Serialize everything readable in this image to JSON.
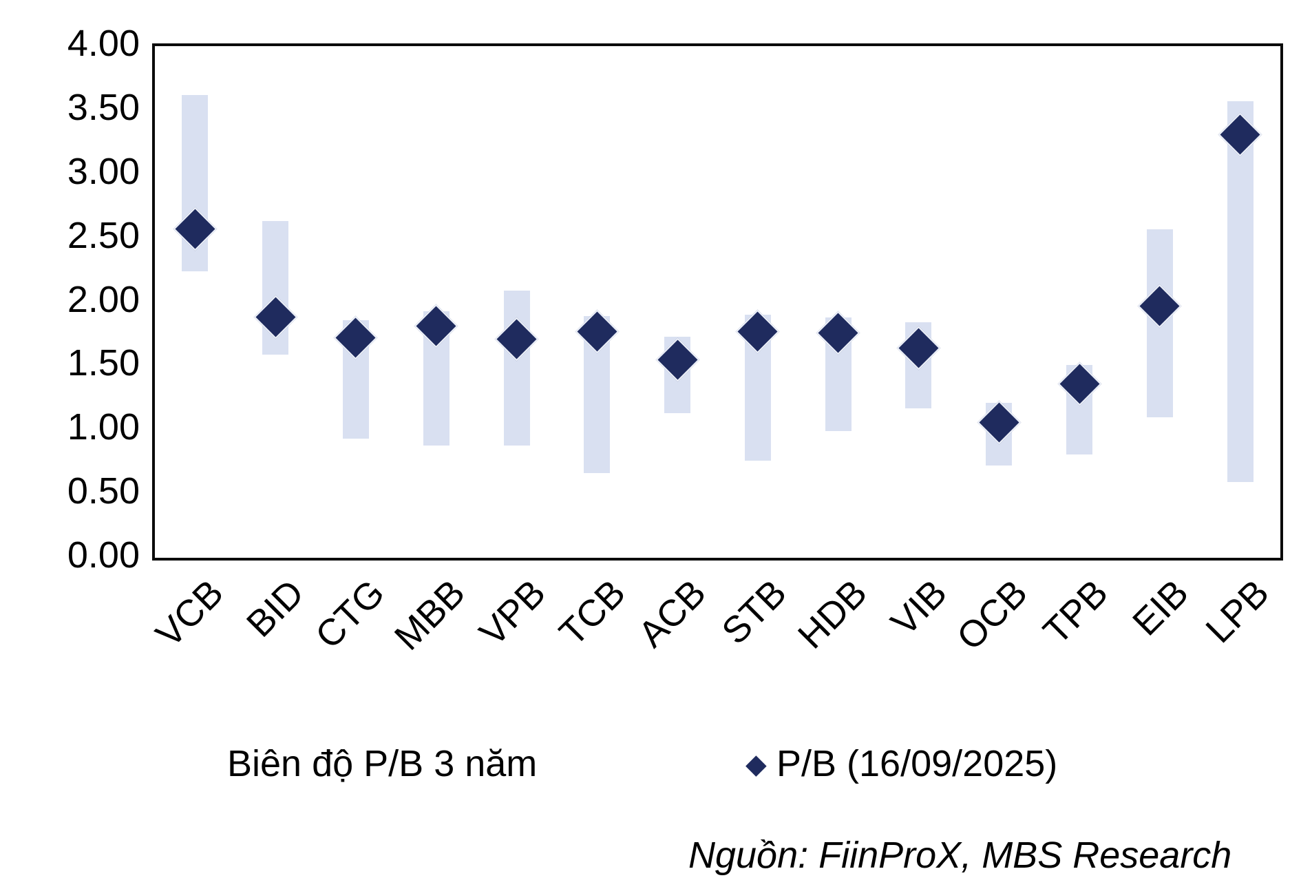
{
  "chart_data": {
    "type": "bar",
    "subtype": "floating-range-bars-with-diamond-markers",
    "title": "",
    "categories": [
      "VCB",
      "BID",
      "CTG",
      "MBB",
      "VPB",
      "TCB",
      "ACB",
      "STB",
      "HDB",
      "VIB",
      "OCB",
      "TPB",
      "EIB",
      "LPB"
    ],
    "series": [
      {
        "name": "Biên độ P/B 3 năm",
        "type": "range-bar",
        "low": [
          2.24,
          1.59,
          0.93,
          0.88,
          0.88,
          0.66,
          1.13,
          0.76,
          0.99,
          1.17,
          0.72,
          0.81,
          1.1,
          0.59
        ],
        "high": [
          3.62,
          2.63,
          1.86,
          1.93,
          2.09,
          1.89,
          1.73,
          1.9,
          1.88,
          1.84,
          1.21,
          1.51,
          2.57,
          3.57
        ]
      },
      {
        "name": "P/B (16/09/2025)",
        "type": "scatter-diamond",
        "values": [
          2.57,
          1.88,
          1.72,
          1.81,
          1.71,
          1.77,
          1.55,
          1.77,
          1.76,
          1.64,
          1.06,
          1.36,
          1.97,
          3.31
        ]
      }
    ],
    "xlabel": "",
    "ylabel": "",
    "ylim": [
      0,
      4
    ],
    "ytick_step": 0.5,
    "ytick_labels": [
      "0.00",
      "0.50",
      "1.00",
      "1.50",
      "2.00",
      "2.50",
      "3.00",
      "3.50",
      "4.00"
    ],
    "grid": false,
    "legend_position": "bottom"
  },
  "legend": {
    "range_label": "Biên độ P/B 3 năm",
    "marker_label": "P/B (16/09/2025)",
    "marker_glyph": "◆"
  },
  "footer": {
    "source": "Nguồn: FiinProX, MBS Research"
  },
  "colors": {
    "bar": "#d9e0f1",
    "marker": "#1f2b5e",
    "axis": "#0b0b0b",
    "background": "#ffffff"
  }
}
